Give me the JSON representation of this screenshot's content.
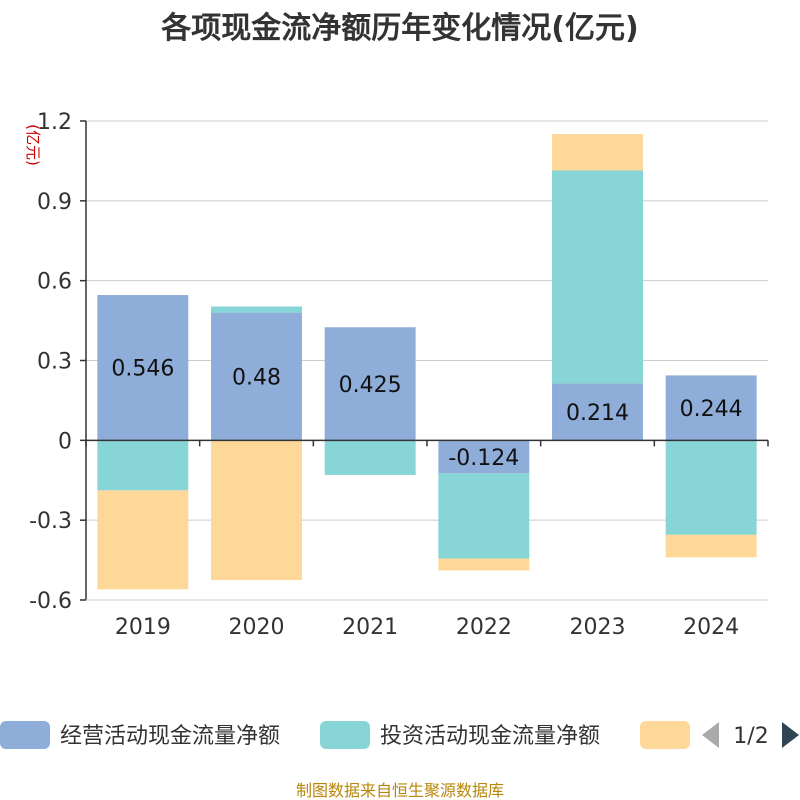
{
  "chart_data": {
    "type": "bar",
    "stacked": true,
    "title": "各项现金流净额历年变化情况(亿元)",
    "ylabel": "(亿元)",
    "xlabel": "",
    "categories": [
      "2019",
      "2020",
      "2021",
      "2022",
      "2023",
      "2024"
    ],
    "ylim": [
      -0.6,
      1.2
    ],
    "yticks": [
      "1.2",
      "0.9",
      "0.6",
      "0.3",
      "0",
      "-0.3",
      "-0.6"
    ],
    "ytick_values": [
      1.2,
      0.9,
      0.6,
      0.3,
      0,
      -0.3,
      -0.6
    ],
    "grid": true,
    "series": [
      {
        "name": "经营活动现金流量净额",
        "color": "#8fadd9",
        "values": [
          0.546,
          0.48,
          0.425,
          -0.124,
          0.214,
          0.244
        ],
        "labels": [
          "0.546",
          "0.48",
          "0.425",
          "-0.124",
          "0.214",
          "0.244"
        ]
      },
      {
        "name": "投资活动现金流量净额",
        "color": "#87d5d6",
        "values": [
          -0.188,
          0.023,
          -0.13,
          -0.32,
          0.8,
          -0.355
        ]
      },
      {
        "name": "",
        "color": "#fdd899",
        "values": [
          -0.372,
          -0.525,
          0,
          -0.045,
          0.137,
          -0.085
        ]
      }
    ],
    "legend": {
      "items": [
        "经营活动现金流量净额",
        "投资活动现金流量净额",
        ""
      ],
      "page": "1/2",
      "position": "bottom"
    }
  },
  "source_text": "制图数据来自恒生聚源数据库"
}
